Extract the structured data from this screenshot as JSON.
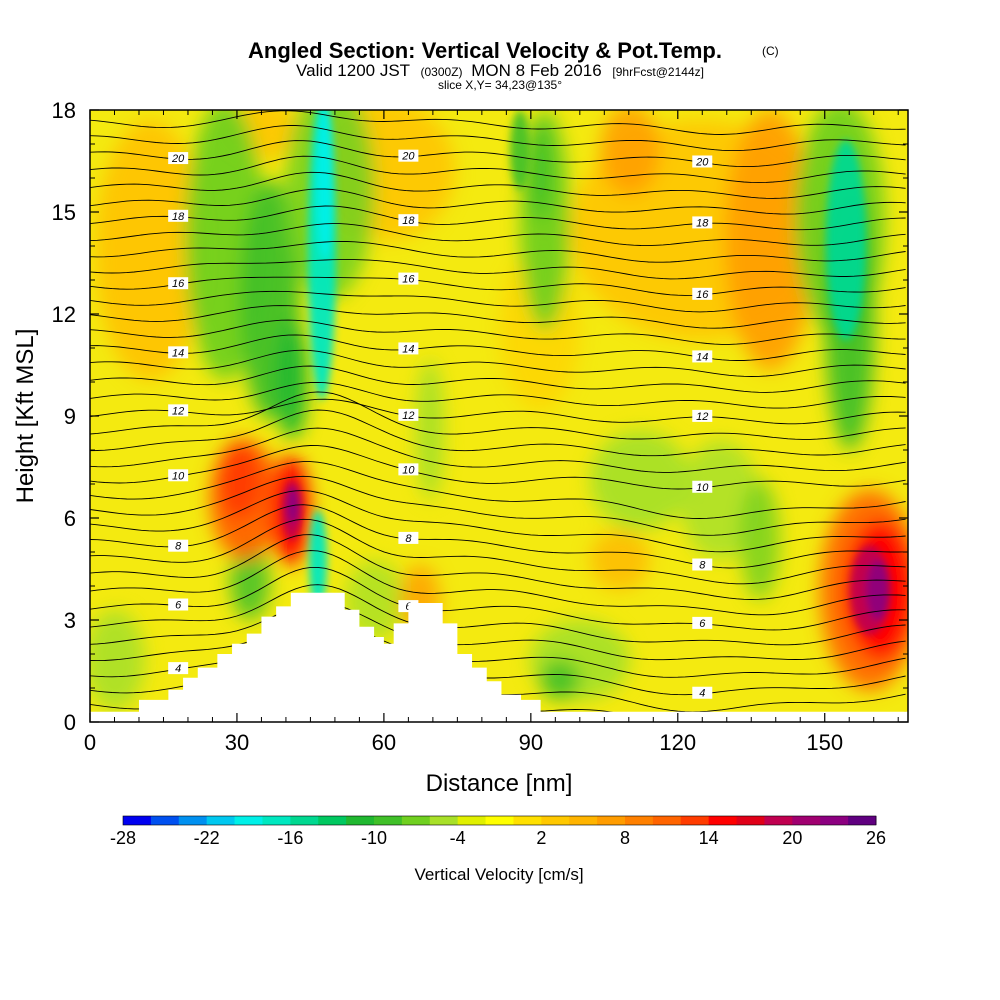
{
  "title": {
    "main": "Angled Section: Vertical Velocity & Pot.Temp.",
    "main_unit": "(C)",
    "valid_prefix": "Valid 1200 JST",
    "valid_utc": "(0300Z)",
    "valid_date": "MON 8 Feb 2016",
    "forecast_tag": "[9hrFcst@2144z]",
    "slice": "slice X,Y= 34,23@135°"
  },
  "chart_data": {
    "type": "heatmap",
    "xlabel": "Distance [nm]",
    "ylabel": "Height [Kft MSL]",
    "xlim": [
      0,
      167
    ],
    "ylim": [
      0,
      18
    ],
    "x_ticks": [
      "0",
      "30",
      "60",
      "90",
      "120",
      "150"
    ],
    "y_ticks": [
      "0",
      "3",
      "6",
      "9",
      "12",
      "15",
      "18"
    ],
    "colorbar": {
      "title": "Vertical Velocity [cm/s]",
      "tick_labels": [
        "-28",
        "-22",
        "-16",
        "-10",
        "-4",
        "2",
        "8",
        "14",
        "20",
        "26"
      ],
      "colors": [
        "#0000f0",
        "#0050f0",
        "#0090f0",
        "#00c8f0",
        "#00f0e8",
        "#00e8c0",
        "#00d890",
        "#00c860",
        "#20b830",
        "#40c028",
        "#70d020",
        "#a8e028",
        "#e0f000",
        "#ffff00",
        "#ffe000",
        "#ffc800",
        "#ffb400",
        "#ff9c00",
        "#ff8000",
        "#ff6400",
        "#ff3c00",
        "#ff0000",
        "#e00018",
        "#c00050",
        "#a00070",
        "#8c0080",
        "#600080"
      ]
    },
    "vertical_velocity_features": [
      {
        "x": 46,
        "z_bottom": 3.8,
        "z_top": 18,
        "value": -18,
        "kind": "downdraft"
      },
      {
        "x": 157,
        "z_bottom": 9.0,
        "z_top": 18,
        "value": -14,
        "kind": "downdraft"
      },
      {
        "x": 28,
        "z_bottom": 8.0,
        "z_top": 16.0,
        "value": -8,
        "kind": "downdraft"
      },
      {
        "x": 90,
        "z_bottom": 12.0,
        "z_top": 18,
        "value": -8,
        "kind": "downdraft"
      },
      {
        "x": 42,
        "z_bottom": 4.0,
        "z_top": 8.0,
        "value": 24,
        "kind": "updraft"
      },
      {
        "x": 31,
        "z_bottom": 5.0,
        "z_top": 8.5,
        "value": 16,
        "kind": "updraft"
      },
      {
        "x": 160,
        "z_bottom": 2.0,
        "z_top": 6.5,
        "value": 25,
        "kind": "updraft"
      },
      {
        "x": 108,
        "z_bottom": 12.0,
        "z_top": 18,
        "value": 6,
        "kind": "updraft"
      },
      {
        "x": 145,
        "z_bottom": 8.0,
        "z_top": 18,
        "value": 8,
        "kind": "updraft"
      }
    ],
    "potential_temperature_contours": [
      {
        "value": 4,
        "label": "4"
      },
      {
        "value": 6,
        "label": "6"
      },
      {
        "value": 8,
        "label": "8"
      },
      {
        "value": 10,
        "label": "10"
      },
      {
        "value": 12,
        "label": "12"
      },
      {
        "value": 14,
        "label": "14"
      },
      {
        "value": 16,
        "label": "16"
      },
      {
        "value": 18,
        "label": "18"
      },
      {
        "value": 20,
        "label": "20"
      }
    ],
    "terrain_profile": {
      "x": [
        0,
        10,
        10,
        16,
        16,
        19,
        19,
        22,
        22,
        26,
        26,
        29,
        29,
        32,
        32,
        35,
        35,
        38,
        38,
        41,
        41,
        43,
        43,
        52,
        52,
        55,
        55,
        58,
        58,
        60,
        60,
        62,
        62,
        65,
        65,
        72,
        72,
        75,
        75,
        78,
        78,
        81,
        81,
        84,
        84,
        88,
        88,
        92,
        92,
        167
      ],
      "z": [
        0.3,
        0.3,
        0.65,
        0.65,
        0.95,
        0.95,
        1.3,
        1.3,
        1.6,
        1.6,
        2.0,
        2.0,
        2.3,
        2.3,
        2.6,
        2.6,
        3.1,
        3.1,
        3.4,
        3.4,
        3.8,
        3.8,
        3.8,
        3.8,
        3.3,
        3.3,
        2.8,
        2.8,
        2.5,
        2.5,
        2.3,
        2.3,
        2.9,
        2.9,
        3.5,
        3.5,
        2.9,
        2.9,
        2.0,
        2.0,
        1.6,
        1.6,
        1.2,
        1.2,
        0.8,
        0.8,
        0.65,
        0.65,
        0.3,
        0.3
      ]
    }
  }
}
